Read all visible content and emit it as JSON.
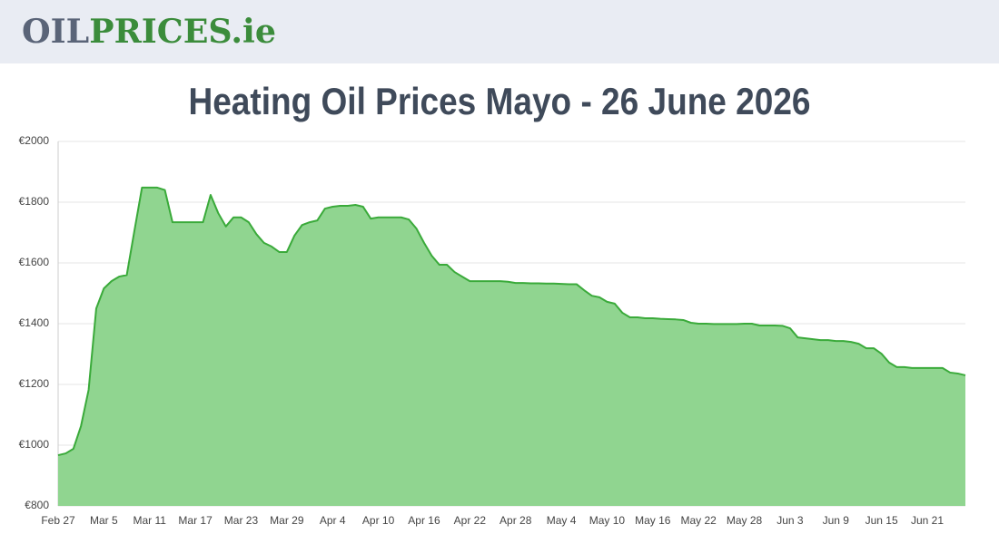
{
  "header": {
    "logo": [
      "OIL",
      "PRICES",
      ".ie"
    ]
  },
  "chart_data": {
    "type": "area",
    "title": "Heating Oil Prices Mayo - 26 June 2026",
    "categories": [
      "Feb 27",
      null,
      null,
      null,
      null,
      null,
      "Mar 5",
      null,
      null,
      null,
      null,
      null,
      "Mar 11",
      null,
      null,
      null,
      null,
      null,
      "Mar 17",
      null,
      null,
      null,
      null,
      null,
      "Mar 23",
      null,
      null,
      null,
      null,
      null,
      "Mar 29",
      null,
      null,
      null,
      null,
      null,
      "Apr 4",
      null,
      null,
      null,
      null,
      null,
      "Apr 10",
      null,
      null,
      null,
      null,
      null,
      "Apr 16",
      null,
      null,
      null,
      null,
      null,
      "Apr 22",
      null,
      null,
      null,
      null,
      null,
      "Apr 28",
      null,
      null,
      null,
      null,
      null,
      "May 4",
      null,
      null,
      null,
      null,
      null,
      "May 10",
      null,
      null,
      null,
      null,
      null,
      "May 16",
      null,
      null,
      null,
      null,
      null,
      "May 22",
      null,
      null,
      null,
      null,
      null,
      "May 28",
      null,
      null,
      null,
      null,
      null,
      "Jun 3",
      null,
      null,
      null,
      null,
      null,
      "Jun 9",
      null,
      null,
      null,
      null,
      null,
      "Jun 15",
      null,
      null,
      null,
      null,
      null,
      "Jun 21",
      null,
      null,
      null,
      null,
      null
    ],
    "values": [
      967,
      973,
      988,
      1063,
      1182,
      1450,
      1516,
      1540,
      1555,
      1560,
      1705,
      1848,
      1848,
      1848,
      1840,
      1734,
      1734,
      1734,
      1734,
      1734,
      1824,
      1764,
      1720,
      1750,
      1750,
      1734,
      1695,
      1666,
      1654,
      1636,
      1636,
      1690,
      1725,
      1734,
      1740,
      1779,
      1785,
      1788,
      1788,
      1791,
      1785,
      1746,
      1750,
      1750,
      1750,
      1750,
      1743,
      1713,
      1666,
      1624,
      1594,
      1594,
      1570,
      1555,
      1540,
      1540,
      1540,
      1540,
      1540,
      1538,
      1534,
      1534,
      1533,
      1533,
      1532,
      1532,
      1531,
      1530,
      1530,
      1510,
      1492,
      1487,
      1472,
      1466,
      1436,
      1421,
      1421,
      1418,
      1418,
      1416,
      1415,
      1414,
      1412,
      1403,
      1400,
      1400,
      1399,
      1399,
      1399,
      1399,
      1400,
      1400,
      1394,
      1394,
      1394,
      1393,
      1385,
      1355,
      1352,
      1349,
      1346,
      1346,
      1343,
      1343,
      1340,
      1334,
      1319,
      1319,
      1301,
      1272,
      1257,
      1257,
      1254,
      1254,
      1254,
      1254,
      1254,
      1239,
      1236,
      1230
    ],
    "color": "#3aaa3a",
    "fill": "#90d590",
    "ylim": [
      800,
      2000
    ],
    "yticks": [
      {
        "value": 800,
        "label": "€800"
      },
      {
        "value": 1000,
        "label": "€1000"
      },
      {
        "value": 1200,
        "label": "€1200"
      },
      {
        "value": 1400,
        "label": "€1400"
      },
      {
        "value": 1600,
        "label": "€1600"
      },
      {
        "value": 1800,
        "label": "€1800"
      },
      {
        "value": 2000,
        "label": "€2000"
      }
    ],
    "grid": true
  }
}
